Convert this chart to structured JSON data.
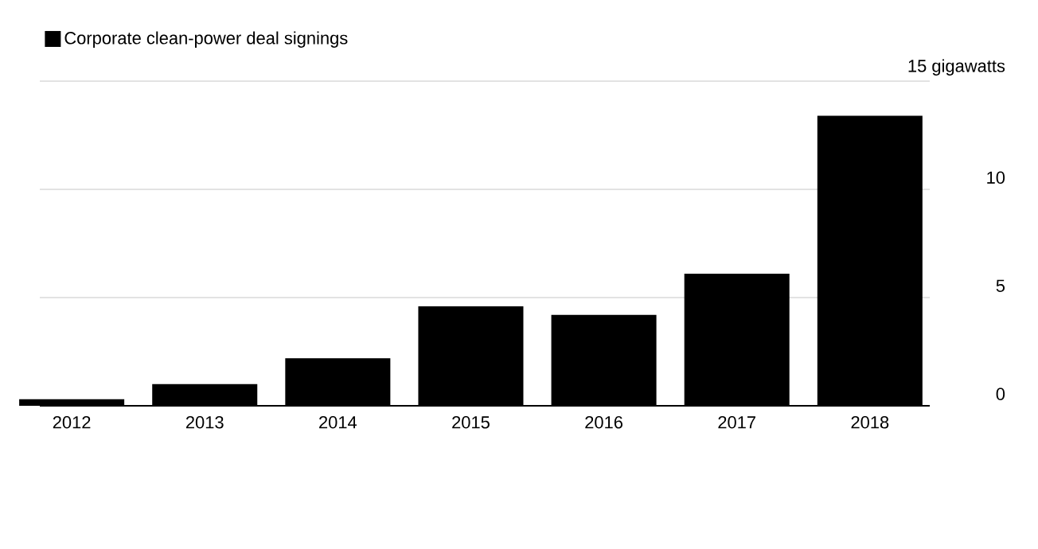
{
  "chart_data": {
    "type": "bar",
    "categories": [
      "2012",
      "2013",
      "2014",
      "2015",
      "2016",
      "2017",
      "2018"
    ],
    "series": [
      {
        "name": "Corporate clean-power deal signings",
        "color": "#000000",
        "values": [
          0.3,
          1.0,
          2.2,
          4.6,
          4.2,
          6.1,
          13.4
        ]
      }
    ],
    "ylim": [
      0,
      15
    ],
    "yticks": [
      0,
      5,
      10,
      {
        "value": 15,
        "label": "15 gigawatts"
      }
    ],
    "grid": "y",
    "legend": "top left"
  }
}
